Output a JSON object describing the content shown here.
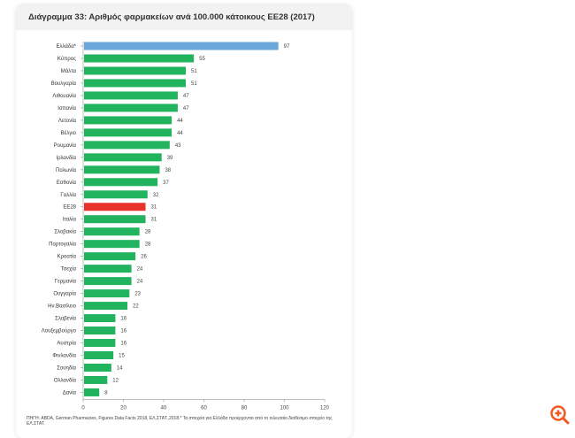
{
  "chart_data": {
    "type": "bar",
    "orientation": "horizontal",
    "title": "Διάγραμμα 33: Αριθμός φαρμακείων ανά 100.000 κάτοικους ΕΕ28 (2017)",
    "categories": [
      "Ελλάδα*",
      "Κύπρος",
      "Μάλτα",
      "Βουλγαρία",
      "Λιθουανία",
      "Ισπανία",
      "Λετονία",
      "Βέλγιο",
      "Ρουμανία",
      "Ιρλανδία",
      "Πολωνία",
      "Εσθονία",
      "Γαλλία",
      "ΕΕ28",
      "Ιταλία",
      "Σλοβακία",
      "Πορτογαλία",
      "Κροατία",
      "Τσεχία",
      "Γερμανία",
      "Ουγγαρία",
      "Ην.Βασίλειο",
      "Σλοβενία",
      "Λουξεμβούργο",
      "Αυστρία",
      "Φινλανδία",
      "Σουηδία",
      "Ολλανδία",
      "Δανία"
    ],
    "values": [
      97,
      55,
      51,
      51,
      47,
      47,
      44,
      44,
      43,
      39,
      38,
      37,
      32,
      31,
      31,
      28,
      28,
      26,
      24,
      24,
      23,
      22,
      16,
      16,
      16,
      15,
      14,
      12,
      8
    ],
    "highlight": {
      "Ελλάδα*": "#6aa8dc",
      "ΕΕ28": "#e8322b"
    },
    "default_color": "#22b35e",
    "xticks": [
      0,
      20,
      40,
      60,
      80,
      100,
      120
    ],
    "xlim": [
      0,
      120
    ],
    "xlabel": "",
    "ylabel": "",
    "grid": false,
    "legend": "none"
  },
  "source": "ΠΗΓΗ: ABDA, German Pharmacies, Figures Data Facts 2018, ΕΛ.ΣΤΑΤ.,2018.* Τα στοιχεία για Ελλάδα προέρχονται από το τελευταίο διαθέσιμο στοιχείο της ΕΛ.ΣΤΑΤ.",
  "icons": {
    "zoom": "zoom-in-icon"
  },
  "accent": "#f05a22"
}
